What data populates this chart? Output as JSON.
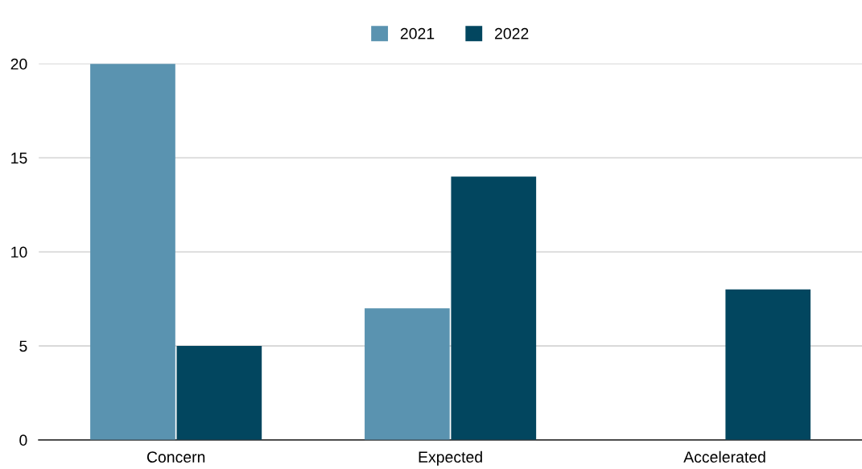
{
  "chart_data": {
    "type": "bar",
    "categories": [
      "Concern",
      "Expected",
      "Accelerated"
    ],
    "series": [
      {
        "name": "2021",
        "color": "#5a93b0",
        "values": [
          20,
          7,
          0
        ]
      },
      {
        "name": "2022",
        "color": "#02465f",
        "values": [
          5,
          14,
          8
        ]
      }
    ],
    "ylim": [
      0,
      20
    ],
    "yticks": [
      0,
      5,
      10,
      15,
      20
    ],
    "grid": "y",
    "legend": "top"
  }
}
